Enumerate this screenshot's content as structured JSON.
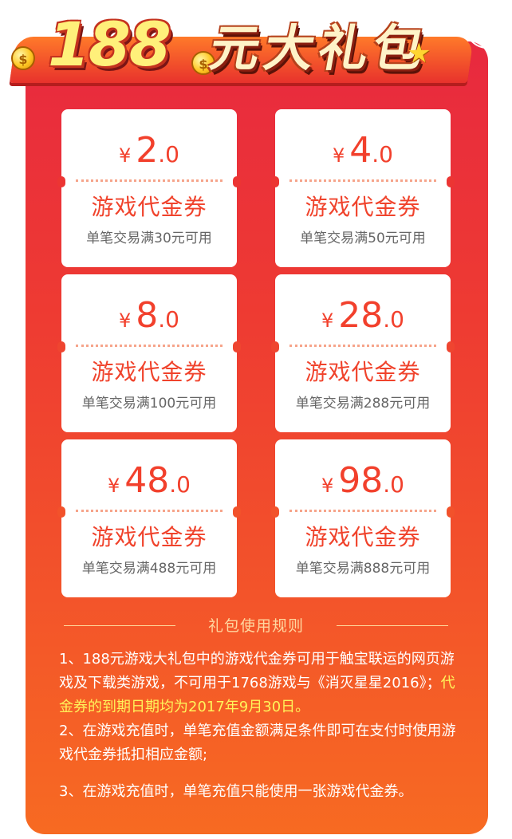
{
  "banner": {
    "number": "188",
    "text": "元大礼包",
    "coin_symbol": "$"
  },
  "close": {
    "icon": "close-icon"
  },
  "coupons": [
    {
      "currency": "¥",
      "int": "2",
      "dec": ".0",
      "name": "游戏代金券",
      "condition": "单笔交易满30元可用"
    },
    {
      "currency": "¥",
      "int": "4",
      "dec": ".0",
      "name": "游戏代金券",
      "condition": "单笔交易满50元可用"
    },
    {
      "currency": "¥",
      "int": "8",
      "dec": ".0",
      "name": "游戏代金券",
      "condition": "单笔交易满100元可用"
    },
    {
      "currency": "¥",
      "int": "28",
      "dec": ".0",
      "name": "游戏代金券",
      "condition": "单笔交易满288元可用"
    },
    {
      "currency": "¥",
      "int": "48",
      "dec": ".0",
      "name": "游戏代金券",
      "condition": "单笔交易满488元可用"
    },
    {
      "currency": "¥",
      "int": "98",
      "dec": ".0",
      "name": "游戏代金券",
      "condition": "单笔交易满888元可用"
    }
  ],
  "rules": {
    "title": "礼包使用规则",
    "rule1_text": "1、188元游戏大礼包中的游戏代金券可用于触宝联运的网页游戏及下载类游戏，不可用于1768游戏与《消灭星星2016》；",
    "rule1_highlight": "代金券的到期日期均为2017年9月30日。",
    "rule2": "2、在游戏充值时，单笔充值金额满足条件即可在支付时使用游戏代金券抵扣相应金额;",
    "rule3": "3、在游戏充值时，单笔充值只能使用一张游戏代金券。"
  },
  "colors": {
    "panel_top": "#e8293f",
    "panel_bottom": "#f76a22",
    "coupon_text": "#f2402c",
    "highlight": "#fff35a"
  }
}
